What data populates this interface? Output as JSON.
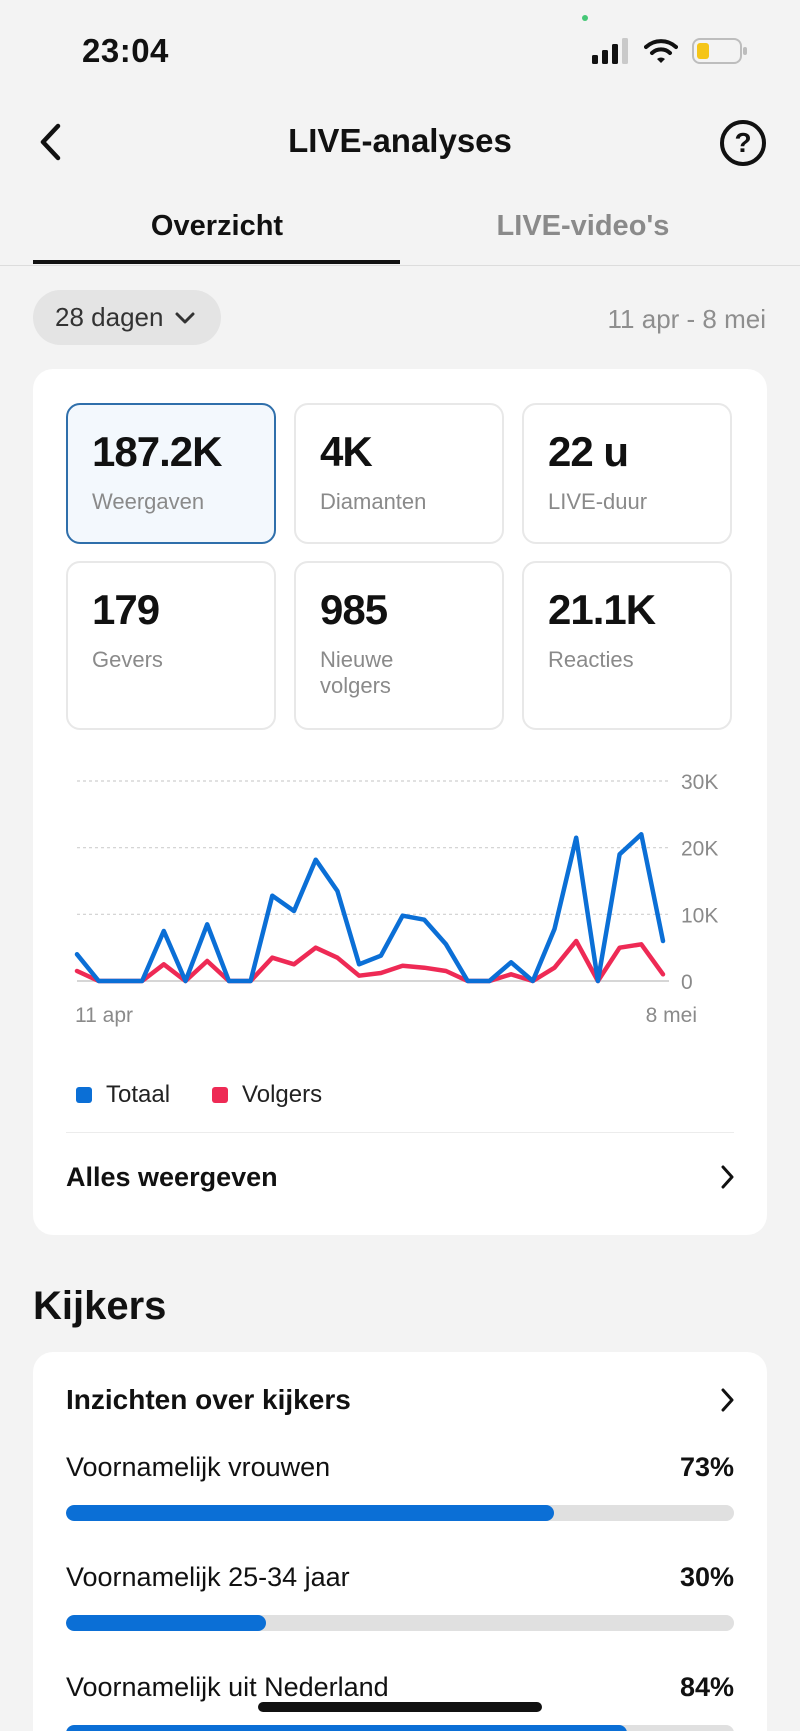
{
  "status": {
    "time": "23:04"
  },
  "nav": {
    "title": "LIVE-analyses",
    "help_glyph": "?"
  },
  "tabs": [
    {
      "label": "Overzicht",
      "active": true
    },
    {
      "label": "LIVE-video's",
      "active": false
    }
  ],
  "filter": {
    "period_label": "28 dagen",
    "date_range": "11 apr - 8 mei"
  },
  "metrics": [
    {
      "value": "187.2K",
      "label": "Weergaven",
      "selected": true
    },
    {
      "value": "4K",
      "label": "Diamanten",
      "selected": false
    },
    {
      "value": "22 u",
      "label": "LIVE-duur",
      "selected": false
    },
    {
      "value": "179",
      "label": "Gevers",
      "selected": false
    },
    {
      "value": "985",
      "label": "Nieuwe volgers",
      "selected": false
    },
    {
      "value": "21.1K",
      "label": "Reacties",
      "selected": false
    }
  ],
  "chart_data": {
    "type": "line",
    "x_start_label": "11 apr",
    "x_end_label": "8 mei",
    "y_ticks": [
      "0",
      "10K",
      "20K",
      "30K"
    ],
    "ylim": [
      0,
      30000
    ],
    "grid": true,
    "legend_position": "bottom-left",
    "series": [
      {
        "name": "Totaal",
        "color": "#0b6fd6",
        "values": [
          4000,
          0,
          0,
          0,
          7500,
          0,
          8500,
          0,
          0,
          12800,
          10500,
          18200,
          13500,
          2500,
          3800,
          9800,
          9200,
          5500,
          0,
          0,
          2800,
          0,
          7800,
          21500,
          0,
          19000,
          22000,
          6000
        ]
      },
      {
        "name": "Volgers",
        "color": "#ee2a55",
        "values": [
          1500,
          0,
          0,
          0,
          2500,
          0,
          3000,
          0,
          0,
          3500,
          2500,
          5000,
          3500,
          800,
          1200,
          2300,
          2000,
          1500,
          0,
          0,
          1000,
          0,
          2000,
          6000,
          0,
          5000,
          5500,
          1000
        ]
      }
    ]
  },
  "card_link": {
    "label": "Alles weergeven"
  },
  "section": {
    "title": "Kijkers"
  },
  "insights": {
    "title": "Inzichten over kijkers",
    "rows": [
      {
        "label": "Voornamelijk vrouwen",
        "pct_label": "73%",
        "fraction": 0.73
      },
      {
        "label": "Voornamelijk 25-34 jaar",
        "pct_label": "30%",
        "fraction": 0.3
      },
      {
        "label": "Voornamelijk uit Nederland",
        "pct_label": "84%",
        "fraction": 0.84
      }
    ]
  }
}
